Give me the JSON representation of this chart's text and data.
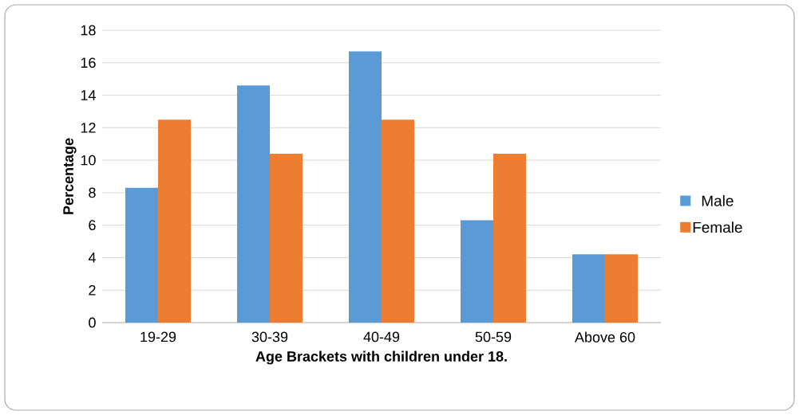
{
  "chart_data": {
    "type": "bar",
    "xlabel": "Age Brackets with children under 18.",
    "ylabel": "Percentage",
    "categories": [
      "19-29",
      "30-39",
      "40-49",
      "50-59",
      "Above 60"
    ],
    "series": [
      {
        "name": "Male",
        "color": "#5b9bd5",
        "values": [
          8.3,
          14.6,
          16.7,
          6.3,
          4.2
        ]
      },
      {
        "name": "Female",
        "color": "#ed7d31",
        "values": [
          12.5,
          10.4,
          12.5,
          10.4,
          4.2
        ]
      }
    ],
    "ylim": [
      0,
      18
    ],
    "yticks": [
      0,
      2,
      4,
      6,
      8,
      10,
      12,
      14,
      16,
      18
    ],
    "grid": "y",
    "legend": "right"
  }
}
